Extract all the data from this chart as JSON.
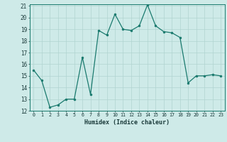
{
  "x": [
    0,
    1,
    2,
    3,
    4,
    5,
    6,
    7,
    8,
    9,
    10,
    11,
    12,
    13,
    14,
    15,
    16,
    17,
    18,
    19,
    20,
    21,
    22,
    23
  ],
  "y": [
    15.5,
    14.6,
    12.3,
    12.5,
    13.0,
    13.0,
    16.6,
    13.4,
    18.9,
    18.5,
    20.3,
    19.0,
    18.9,
    19.3,
    21.1,
    19.3,
    18.8,
    18.7,
    18.3,
    14.4,
    15.0,
    15.0,
    15.1,
    15.0
  ],
  "line_color": "#1a7a6e",
  "marker_color": "#1a7a6e",
  "bg_color": "#ceeae8",
  "grid_color": "#b0d4d0",
  "xlabel": "Humidex (Indice chaleur)",
  "ylim": [
    12,
    21
  ],
  "xlim": [
    -0.5,
    23.5
  ],
  "yticks": [
    12,
    13,
    14,
    15,
    16,
    17,
    18,
    19,
    20,
    21
  ],
  "xticks": [
    0,
    1,
    2,
    3,
    4,
    5,
    6,
    7,
    8,
    9,
    10,
    11,
    12,
    13,
    14,
    15,
    16,
    17,
    18,
    19,
    20,
    21,
    22,
    23
  ]
}
